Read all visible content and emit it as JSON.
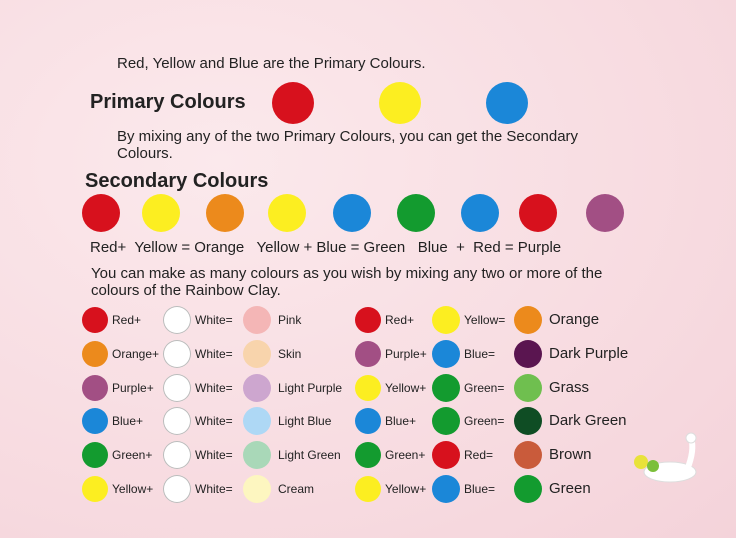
{
  "intro": "Red, Yellow and Blue are the Primary Colours.",
  "primary": {
    "title": "Primary Colours",
    "colors": [
      "#d7111d",
      "#fcee21",
      "#1b87d8"
    ]
  },
  "secondary_intro": "By mixing any of the two Primary Colours, you can get the Secondary Colours.",
  "secondary": {
    "title": "Secondary Colours",
    "colors": [
      "#d7111d",
      "#fcee21",
      "#ec8a1c",
      "#fcee21",
      "#1b87d8",
      "#139b2f",
      "#1b87d8",
      "#d7111d",
      "#a24f84"
    ],
    "equation": "Red+  Yellow = Orange   Yellow + Blue = Green   Blue  +  Red = Purple"
  },
  "mix_intro": "You can make as many colours as you wish by mixing any two or more of the colours of the Rainbow Clay.",
  "mix_left": [
    {
      "a": "Red+",
      "a_color": "#d7111d",
      "b": "White=",
      "b_color": "#ffffff",
      "result": "Pink",
      "result_color": "#f4b6b6"
    },
    {
      "a": "Orange+",
      "a_color": "#ec8a1c",
      "b": "White=",
      "b_color": "#ffffff",
      "result": "Skin",
      "result_color": "#f8d4ac"
    },
    {
      "a": "Purple+",
      "a_color": "#a24f84",
      "b": "White=",
      "b_color": "#ffffff",
      "result": "Light Purple",
      "result_color": "#cda6cf"
    },
    {
      "a": "Blue+",
      "a_color": "#1b87d8",
      "b": "White=",
      "b_color": "#ffffff",
      "result": "Light Blue",
      "result_color": "#aed8f5"
    },
    {
      "a": "Green+",
      "a_color": "#139b2f",
      "b": "White=",
      "b_color": "#ffffff",
      "result": "Light Green",
      "result_color": "#a9d8b8"
    },
    {
      "a": "Yellow+",
      "a_color": "#fcee21",
      "b": "White=",
      "b_color": "#ffffff",
      "result": "Cream",
      "result_color": "#fdf6c0"
    }
  ],
  "mix_right": [
    {
      "a": "Red+",
      "a_color": "#d7111d",
      "b": "Yellow=",
      "b_color": "#fcee21",
      "result": "Orange",
      "result_color": "#ec8a1c"
    },
    {
      "a": "Purple+",
      "a_color": "#a24f84",
      "b": "Blue=",
      "b_color": "#1b87d8",
      "result": "Dark Purple",
      "result_color": "#5a1550"
    },
    {
      "a": "Yellow+",
      "a_color": "#fcee21",
      "b": "Green=",
      "b_color": "#139b2f",
      "result": "Grass",
      "result_color": "#6fbf4f"
    },
    {
      "a": "Blue+",
      "a_color": "#1b87d8",
      "b": "Green=",
      "b_color": "#139b2f",
      "result": "Dark Green",
      "result_color": "#0f4d24"
    },
    {
      "a": "Green+",
      "a_color": "#139b2f",
      "b": "Red=",
      "b_color": "#d7111d",
      "result": "Brown",
      "result_color": "#c95b3b"
    },
    {
      "a": "Yellow+",
      "a_color": "#fcee21",
      "b": "Blue=",
      "b_color": "#1b87d8",
      "result": "Green",
      "result_color": "#139b2f"
    }
  ]
}
